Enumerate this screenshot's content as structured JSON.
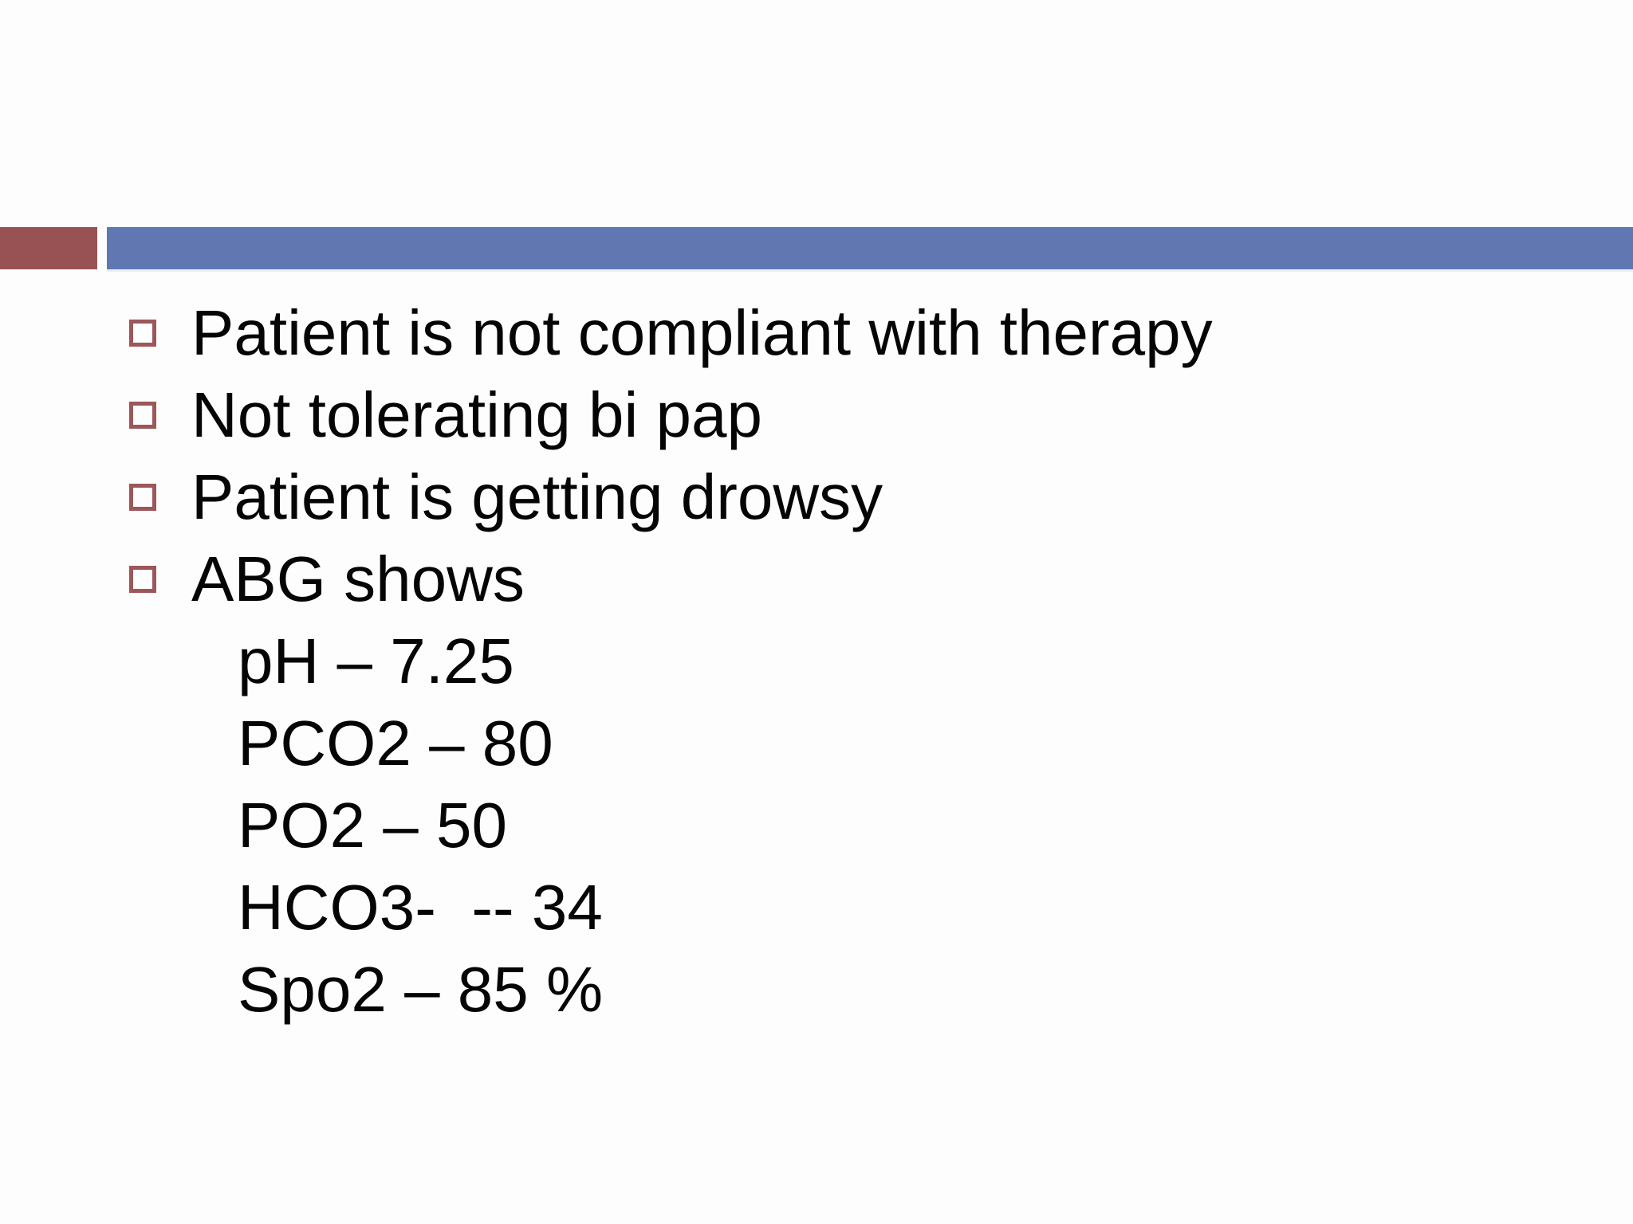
{
  "slide": {
    "colors": {
      "accent_red_block": "#995254",
      "accent_blue_bar": "#6077b1",
      "bullet_outline": "#9c5759",
      "text": "#050505",
      "background": "#fdfdfe"
    },
    "bullets": [
      {
        "text": "Patient is not compliant with therapy"
      },
      {
        "text": "Not tolerating bi pap"
      },
      {
        "text": "Patient is getting drowsy"
      },
      {
        "text": "ABG shows"
      }
    ],
    "abg_values": [
      {
        "text": "pH – 7.25"
      },
      {
        "text": "PCO2 – 80"
      },
      {
        "text": "PO2 – 50"
      },
      {
        "text": "HCO3-  -- 34"
      },
      {
        "text": "Spo2 – 85 %"
      }
    ]
  }
}
